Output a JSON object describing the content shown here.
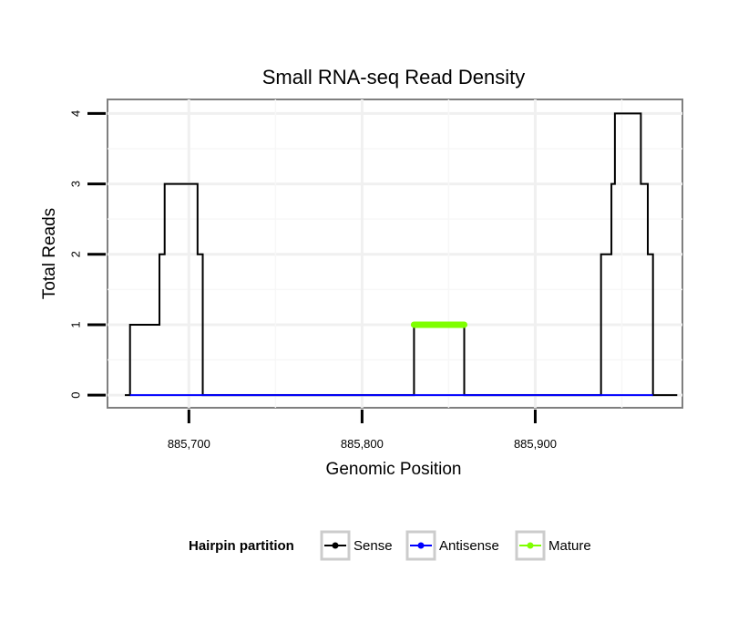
{
  "chart_data": {
    "type": "line",
    "title": "Small RNA-seq Read Density",
    "xlabel": "Genomic Position",
    "ylabel": "Total Reads",
    "xlim": [
      885653,
      885985
    ],
    "ylim": [
      -0.18,
      4.2
    ],
    "x_ticks": [
      885700,
      885800,
      885900
    ],
    "x_tick_labels": [
      "885,700",
      "885,800",
      "885,900"
    ],
    "y_ticks": [
      0,
      1,
      2,
      3,
      4
    ],
    "y_tick_labels": [
      "0",
      "1",
      "2",
      "3",
      "4"
    ],
    "grid": true,
    "legend": {
      "title": "Hairpin partition",
      "position": "bottom",
      "entries": [
        "Sense",
        "Antisense",
        "Mature"
      ]
    },
    "series": [
      {
        "name": "Sense",
        "color": "#000000",
        "x": [
          885663,
          885666,
          885666,
          885683,
          885683,
          885684,
          885684,
          885686,
          885686,
          885703,
          885703,
          885705,
          885705,
          885708,
          885708,
          885830,
          885830,
          885859,
          885859,
          885938,
          885938,
          885944,
          885944,
          885946,
          885946,
          885949,
          885949,
          885961,
          885961,
          885965,
          885965,
          885968,
          885968,
          885982
        ],
        "values": [
          0,
          0,
          1,
          1,
          2,
          2,
          2,
          2,
          3,
          3,
          3,
          3,
          2,
          2,
          0,
          0,
          1,
          1,
          0,
          0,
          2,
          2,
          3,
          3,
          4,
          4,
          4,
          4,
          3,
          3,
          2,
          2,
          0,
          0
        ]
      },
      {
        "name": "Antisense",
        "color": "#0000ff",
        "x": [
          885666,
          885708,
          885830,
          885859,
          885938,
          885968
        ],
        "values": [
          0,
          0,
          0,
          0,
          0,
          0
        ]
      },
      {
        "name": "Mature",
        "color": "#7fff00",
        "x": [
          885830,
          885859
        ],
        "values": [
          1,
          1
        ]
      }
    ]
  }
}
